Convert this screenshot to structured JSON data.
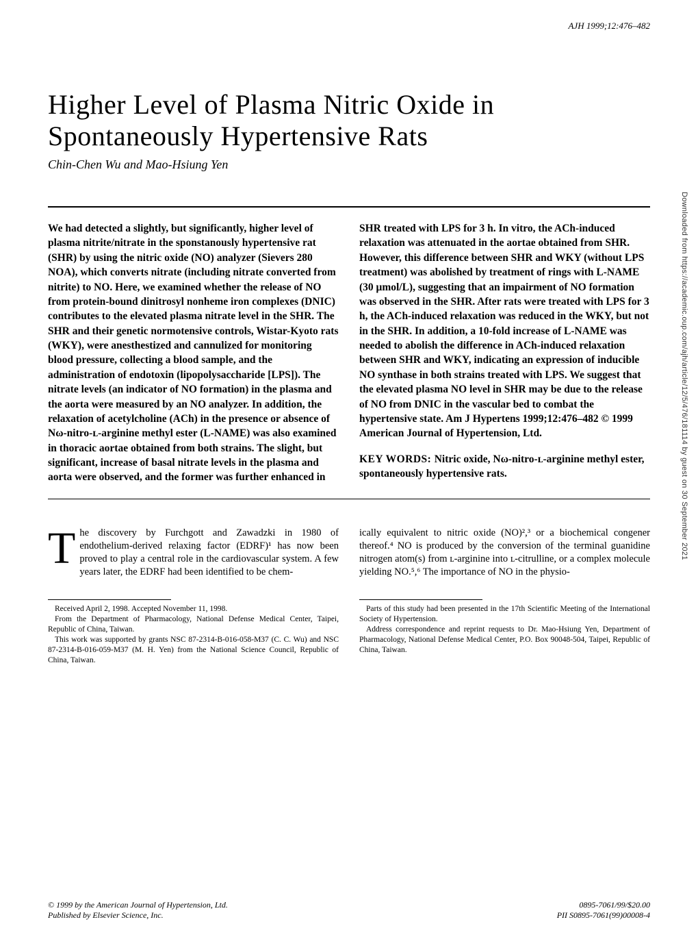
{
  "running_header": "AJH  1999;12:476–482",
  "title_line1": "Higher Level of Plasma Nitric Oxide in",
  "title_line2": "Spontaneously Hypertensive Rats",
  "authors": "Chin-Chen Wu and Mao-Hsiung Yen",
  "abstract": {
    "left": "We had detected a slightly, but significantly, higher level of plasma nitrite/nitrate in the sponstanously hypertensive rat (SHR) by using the nitric oxide (NO) analyzer (Sievers 280 NOA), which converts nitrate (including nitrate converted from nitrite) to NO. Here, we examined whether the release of NO from protein-bound dinitrosyl nonheme iron complexes (DNIC) contributes to the elevated plasma nitrate level in the SHR. The SHR and their genetic normotensive controls, Wistar-Kyoto rats (WKY), were anesthestized and cannulized for monitoring blood pressure, collecting a blood sample, and the administration of endotoxin (lipopolysaccharide [LPS]). The nitrate levels (an indicator of NO formation) in the plasma and the aorta were measured by an NO analyzer. In addition, the relaxation of acetylcholine (ACh) in the presence or absence of Nω-nitro-ʟ-arginine methyl ester (L-NAME) was also examined in thoracic aortae obtained from both strains. The slight, but significant, increase of basal nitrate levels in the plasma and aorta were observed, and the former was further enhanced in",
    "right_p1": "SHR treated with LPS for 3 h. In vitro, the ACh-induced relaxation was attenuated in the aortae obtained from SHR. However, this difference between SHR and WKY (without LPS treatment) was abolished by treatment of rings with L-NAME (30 μmol/L), suggesting that an impairment of NO formation was observed in the SHR. After rats were treated with LPS for 3 h, the ACh-induced relaxation was reduced in the WKY, but not in the SHR. In addition, a 10-fold increase of L-NAME was needed to abolish the difference in ACh-induced relaxation between SHR and WKY, indicating an expression of inducible NO synthase in both strains treated with LPS. We suggest that the elevated plasma NO level in SHR may be due to the release of NO from DNIC in the vascular bed to combat the hypertensive state.   Am J Hypertens 1999;12:476–482 © 1999 American Journal of Hypertension, Ltd.",
    "keywords_label": "KEY WORDS: ",
    "keywords": "Nitric oxide, Nω-nitro-ʟ-arginine methyl ester, spontaneously hypertensive rats."
  },
  "body": {
    "dropcap": "T",
    "left_after_cap": "he discovery by Furchgott and Zawadzki in 1980 of endothelium-derived relaxing factor (EDRF)¹ has now been proved to play a central role in the cardiovascular system. A few years later, the EDRF had been identified to be chem-",
    "right": "ically equivalent to nitric oxide (NO)²,³ or a biochemical congener thereof.⁴ NO is produced by the conversion of the terminal guanidine nitrogen atom(s) from ʟ-arginine into ʟ-citrulline, or a complex molecule yielding NO.⁵,⁶ The importance of NO in the physio-"
  },
  "footnotes": {
    "left_p1": "Received April 2, 1998. Accepted November 11, 1998.",
    "left_p2": "From the Department of Pharmacology, National Defense Medical Center, Taipei, Republic of China, Taiwan.",
    "left_p3": "This work was supported by grants NSC 87-2314-B-016-058-M37 (C. C. Wu) and NSC 87-2314-B-016-059-M37 (M. H. Yen) from the National Science Council, Republic of China, Taiwan.",
    "right_p1": "Parts of this study had been presented in the 17th Scientific Meeting of the International Society of Hypertension.",
    "right_p2": "Address correspondence and reprint requests to Dr. Mao-Hsiung Yen, Department of Pharmacology, National Defense Medical Center, P.O. Box 90048-504, Taipei, Republic of China, Taiwan."
  },
  "footer": {
    "left_line1": "© 1999 by the American Journal of Hypertension, Ltd.",
    "left_line2": "Published by Elsevier Science, Inc.",
    "right_line1": "0895-7061/99/$20.00",
    "right_line2": "PII S0895-7061(99)00008-4"
  },
  "sidebar": "Downloaded from https://academic.oup.com/ajh/article/12/5/476/181114 by guest on 30 September 2021"
}
